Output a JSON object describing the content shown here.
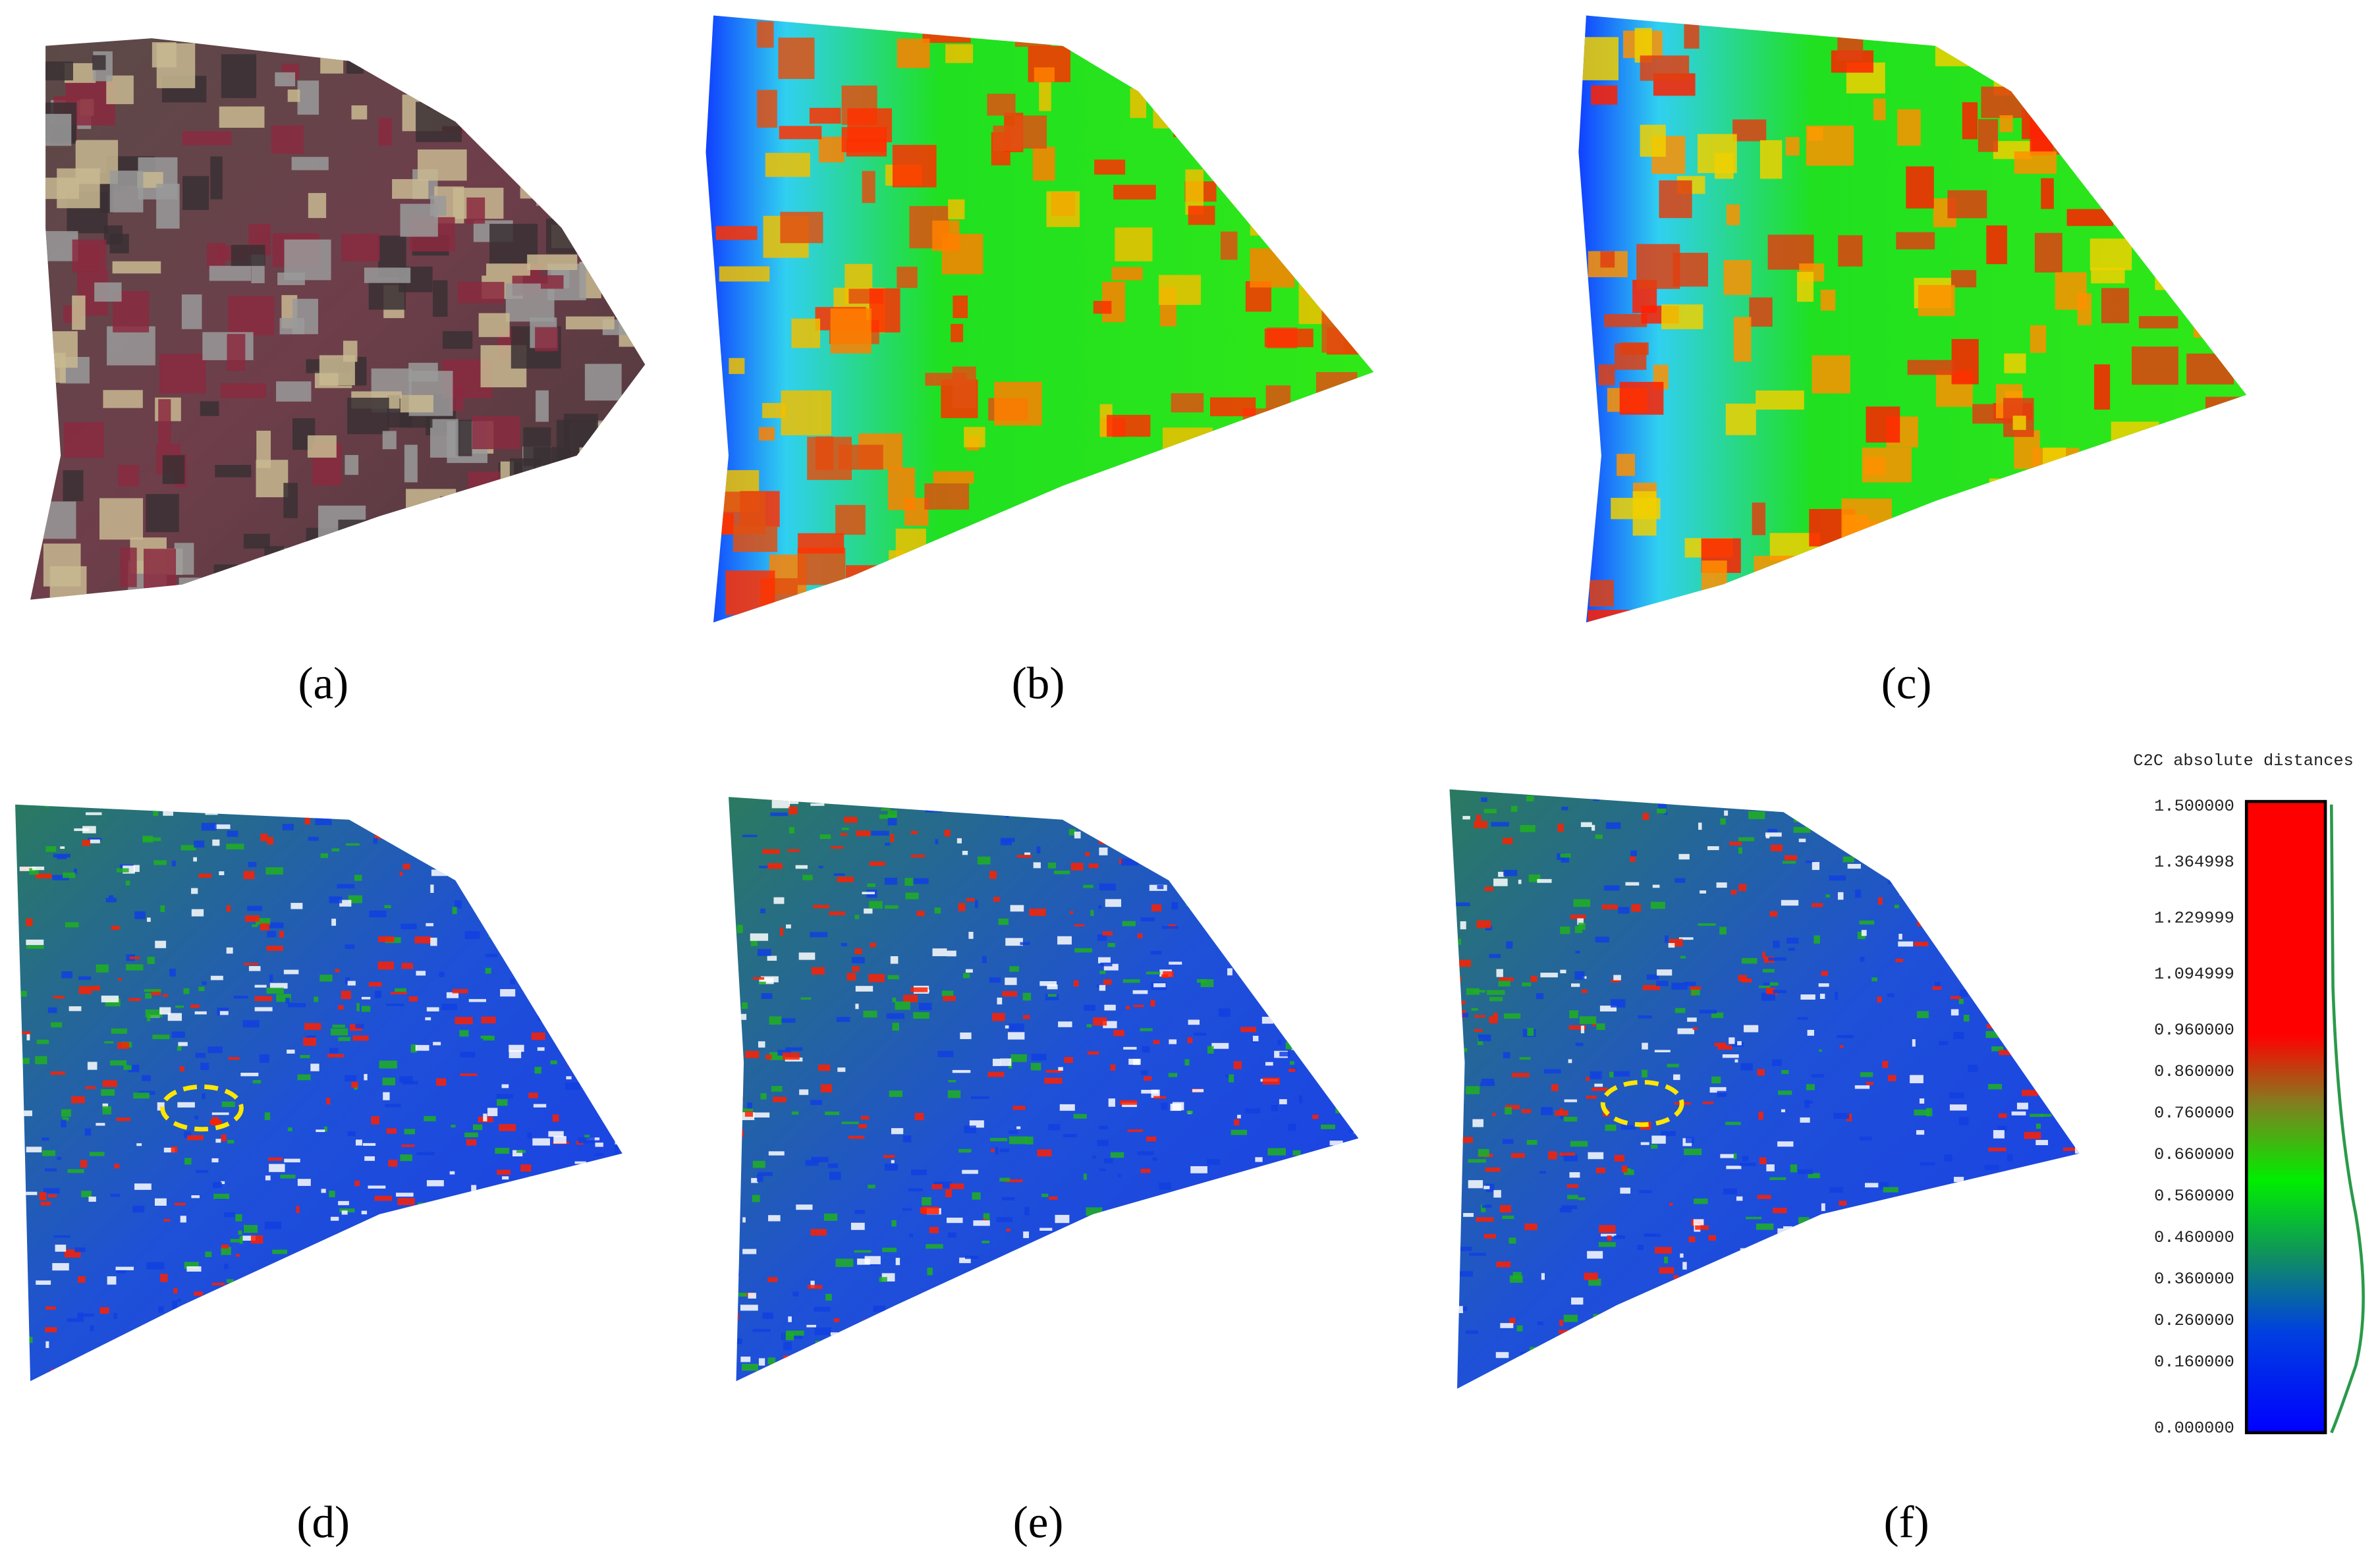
{
  "panels": [
    {
      "label": "(a)"
    },
    {
      "label": "(b)"
    },
    {
      "label": "(c)"
    },
    {
      "label": "(d)"
    },
    {
      "label": "(e)"
    },
    {
      "label": "(f)"
    }
  ],
  "colorbar": {
    "title": "C2C absolute distances",
    "ticks": [
      "1.500000",
      "1.364998",
      "1.229999",
      "1.094999",
      "0.960000",
      "0.860000",
      "0.760000",
      "0.660000",
      "0.560000",
      "0.460000",
      "0.360000",
      "0.260000",
      "0.160000",
      "0.000000"
    ]
  }
}
